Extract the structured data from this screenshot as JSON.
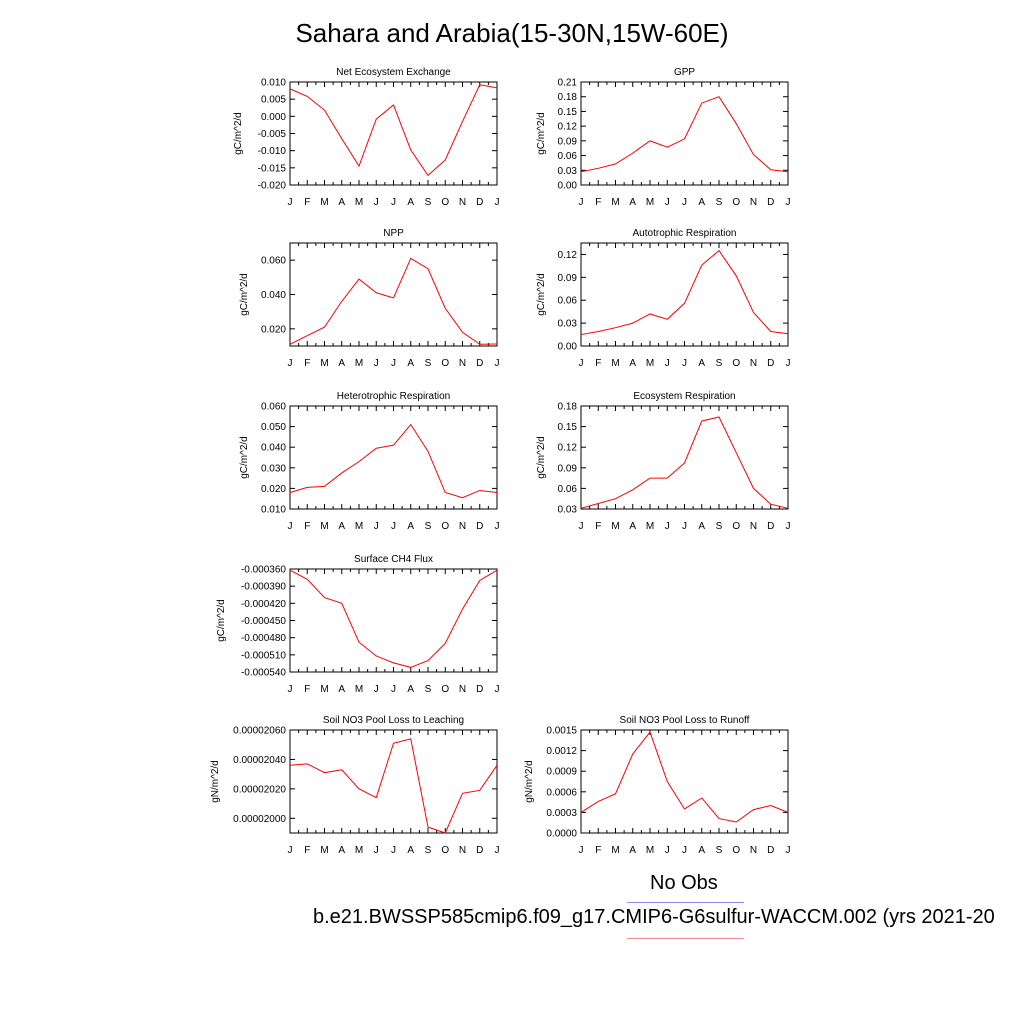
{
  "title": "Sahara and Arabia(15-30N,15W-60E)",
  "legend": {
    "obs_label": "No Obs",
    "case_label": "b.e21.BWSSP585cmip6.f09_g17.CMIP6-G6sulfur-WACCM.002 (yrs 2021-20",
    "obs_color": "#8a8af0",
    "case_color": "#f08a8a"
  },
  "line_color": "#ff0000",
  "chart_data": [
    {
      "type": "line",
      "title": "Net Ecosystem Exchange",
      "ylabel": "gC/m^2/d",
      "x": [
        "J",
        "F",
        "M",
        "A",
        "M",
        "J",
        "J",
        "A",
        "S",
        "O",
        "N",
        "D",
        "J"
      ],
      "ylim": [
        -0.02,
        0.01
      ],
      "yticks": [
        0.01,
        0.005,
        0.0,
        -0.005,
        -0.01,
        -0.015,
        -0.02
      ],
      "ytick_labels": [
        "0.010",
        "0.005",
        "0.000",
        "-0.005",
        "-0.010",
        "-0.015",
        "-0.020"
      ],
      "values": [
        0.008,
        0.0058,
        0.0018,
        -0.0065,
        -0.0145,
        -0.0008,
        0.0033,
        -0.0098,
        -0.0172,
        -0.0127,
        -0.0015,
        0.0092,
        0.0083
      ]
    },
    {
      "type": "line",
      "title": "GPP",
      "ylabel": "gC/m^2/d",
      "x": [
        "J",
        "F",
        "M",
        "A",
        "M",
        "J",
        "J",
        "A",
        "S",
        "O",
        "N",
        "D",
        "J"
      ],
      "ylim": [
        0.0,
        0.21
      ],
      "yticks": [
        0.21,
        0.18,
        0.15,
        0.12,
        0.09,
        0.06,
        0.03,
        0.0
      ],
      "ytick_labels": [
        "0.21",
        "0.18",
        "0.15",
        "0.12",
        "0.09",
        "0.06",
        "0.03",
        "0.00"
      ],
      "values": [
        0.027,
        0.034,
        0.043,
        0.065,
        0.09,
        0.077,
        0.094,
        0.167,
        0.18,
        0.125,
        0.062,
        0.031,
        0.027
      ]
    },
    {
      "type": "line",
      "title": "NPP",
      "ylabel": "gC/m^2/d",
      "x": [
        "J",
        "F",
        "M",
        "A",
        "M",
        "J",
        "J",
        "A",
        "S",
        "O",
        "N",
        "D",
        "J"
      ],
      "ylim": [
        0.01,
        0.07
      ],
      "yticks": [
        0.06,
        0.04,
        0.02
      ],
      "ytick_labels": [
        "0.060",
        "0.040",
        "0.020"
      ],
      "values": [
        0.011,
        0.016,
        0.021,
        0.036,
        0.049,
        0.041,
        0.038,
        0.061,
        0.055,
        0.032,
        0.018,
        0.011,
        0.0112
      ]
    },
    {
      "type": "line",
      "title": "Autotrophic Respiration",
      "ylabel": "gC/m^2/d",
      "x": [
        "J",
        "F",
        "M",
        "A",
        "M",
        "J",
        "J",
        "A",
        "S",
        "O",
        "N",
        "D",
        "J"
      ],
      "ylim": [
        0.0,
        0.135
      ],
      "yticks": [
        0.12,
        0.09,
        0.06,
        0.03,
        0.0
      ],
      "ytick_labels": [
        "0.12",
        "0.09",
        "0.06",
        "0.03",
        "0.00"
      ],
      "values": [
        0.015,
        0.019,
        0.024,
        0.03,
        0.042,
        0.035,
        0.056,
        0.106,
        0.125,
        0.092,
        0.044,
        0.019,
        0.016
      ]
    },
    {
      "type": "line",
      "title": "Heterotrophic Respiration",
      "ylabel": "gC/m^2/d",
      "x": [
        "J",
        "F",
        "M",
        "A",
        "M",
        "J",
        "J",
        "A",
        "S",
        "O",
        "N",
        "D",
        "J"
      ],
      "ylim": [
        0.01,
        0.06
      ],
      "yticks": [
        0.06,
        0.05,
        0.04,
        0.03,
        0.02,
        0.01
      ],
      "ytick_labels": [
        "0.060",
        "0.050",
        "0.040",
        "0.030",
        "0.020",
        "0.010"
      ],
      "values": [
        0.018,
        0.0205,
        0.021,
        0.0275,
        0.033,
        0.0395,
        0.041,
        0.051,
        0.038,
        0.018,
        0.0155,
        0.019,
        0.018
      ]
    },
    {
      "type": "line",
      "title": "Ecosystem Respiration",
      "ylabel": "gC/m^2/d",
      "x": [
        "J",
        "F",
        "M",
        "A",
        "M",
        "J",
        "J",
        "A",
        "S",
        "O",
        "N",
        "D",
        "J"
      ],
      "ylim": [
        0.03,
        0.18
      ],
      "yticks": [
        0.18,
        0.15,
        0.12,
        0.09,
        0.06,
        0.03
      ],
      "ytick_labels": [
        "0.18",
        "0.15",
        "0.12",
        "0.09",
        "0.06",
        "0.03"
      ],
      "values": [
        0.031,
        0.038,
        0.045,
        0.058,
        0.075,
        0.075,
        0.097,
        0.158,
        0.164,
        0.112,
        0.06,
        0.037,
        0.031
      ]
    },
    {
      "type": "line",
      "title": "Surface CH4 Flux",
      "ylabel": "gC/m^2/d",
      "x": [
        "J",
        "F",
        "M",
        "A",
        "M",
        "J",
        "J",
        "A",
        "S",
        "O",
        "N",
        "D",
        "J"
      ],
      "ylim": [
        -0.00054,
        -0.00036
      ],
      "yticks": [
        -0.00036,
        -0.00039,
        -0.00042,
        -0.00045,
        -0.00048,
        -0.00051,
        -0.00054
      ],
      "ytick_labels": [
        "-0.000360",
        "-0.000390",
        "-0.000420",
        "-0.000450",
        "-0.000480",
        "-0.000510",
        "-0.000540"
      ],
      "values": [
        -0.000362,
        -0.000378,
        -0.00041,
        -0.00042,
        -0.000488,
        -0.000512,
        -0.000524,
        -0.000532,
        -0.00052,
        -0.00049,
        -0.00043,
        -0.00038,
        -0.000362
      ]
    },
    {
      "type": "line",
      "title": "Soil NO3 Pool Loss to Leaching",
      "ylabel": "gN/m^2/d",
      "x": [
        "J",
        "F",
        "M",
        "A",
        "M",
        "J",
        "J",
        "A",
        "S",
        "O",
        "N",
        "D",
        "J"
      ],
      "ylim": [
        1.99e-05,
        2.06e-05
      ],
      "yticks": [
        2.06e-05,
        2.04e-05,
        2.02e-05,
        2e-05
      ],
      "ytick_labels": [
        "0.00002060",
        "0.00002040",
        "0.00002020",
        "0.00002000"
      ],
      "values": [
        2.036e-05,
        2.037e-05,
        2.031e-05,
        2.033e-05,
        2.02e-05,
        2.014e-05,
        2.051e-05,
        2.054e-05,
        1.994e-05,
        1.99e-05,
        2.017e-05,
        2.019e-05,
        2.036e-05
      ]
    },
    {
      "type": "line",
      "title": "Soil NO3 Pool Loss to Runoff",
      "ylabel": "gN/m^2/d",
      "x": [
        "J",
        "F",
        "M",
        "A",
        "M",
        "J",
        "J",
        "A",
        "S",
        "O",
        "N",
        "D",
        "J"
      ],
      "ylim": [
        0.0,
        0.0015
      ],
      "yticks": [
        0.0015,
        0.0012,
        0.0009,
        0.0006,
        0.0003,
        0.0
      ],
      "ytick_labels": [
        "0.0015",
        "0.0012",
        "0.0009",
        "0.0006",
        "0.0003",
        "0.0000"
      ],
      "values": [
        0.0003,
        0.00046,
        0.00057,
        0.00115,
        0.00147,
        0.00075,
        0.00035,
        0.00051,
        0.00021,
        0.00016,
        0.00034,
        0.0004,
        0.0003
      ]
    }
  ]
}
